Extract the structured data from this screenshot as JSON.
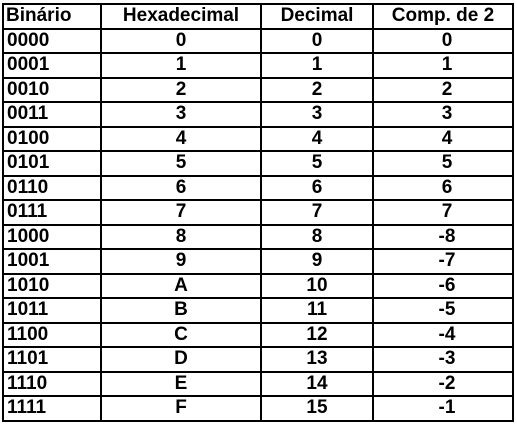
{
  "table": {
    "headers": {
      "binario": "Binário",
      "hexadecimal": "Hexadecimal",
      "decimal": "Decimal",
      "comp2": "Comp. de 2"
    },
    "rows": [
      {
        "binario": "0000",
        "hexadecimal": "0",
        "decimal": "0",
        "comp2": "0"
      },
      {
        "binario": "0001",
        "hexadecimal": "1",
        "decimal": "1",
        "comp2": "1"
      },
      {
        "binario": "0010",
        "hexadecimal": "2",
        "decimal": "2",
        "comp2": "2"
      },
      {
        "binario": "0011",
        "hexadecimal": "3",
        "decimal": "3",
        "comp2": "3"
      },
      {
        "binario": "0100",
        "hexadecimal": "4",
        "decimal": "4",
        "comp2": "4"
      },
      {
        "binario": "0101",
        "hexadecimal": "5",
        "decimal": "5",
        "comp2": "5"
      },
      {
        "binario": "0110",
        "hexadecimal": "6",
        "decimal": "6",
        "comp2": "6"
      },
      {
        "binario": "0111",
        "hexadecimal": "7",
        "decimal": "7",
        "comp2": "7"
      },
      {
        "binario": "1000",
        "hexadecimal": "8",
        "decimal": "8",
        "comp2": "-8"
      },
      {
        "binario": "1001",
        "hexadecimal": "9",
        "decimal": "9",
        "comp2": "-7"
      },
      {
        "binario": "1010",
        "hexadecimal": "A",
        "decimal": "10",
        "comp2": "-6"
      },
      {
        "binario": "1011",
        "hexadecimal": "B",
        "decimal": "11",
        "comp2": "-5"
      },
      {
        "binario": "1100",
        "hexadecimal": "C",
        "decimal": "12",
        "comp2": "-4"
      },
      {
        "binario": "1101",
        "hexadecimal": "D",
        "decimal": "13",
        "comp2": "-3"
      },
      {
        "binario": "1110",
        "hexadecimal": "E",
        "decimal": "14",
        "comp2": "-2"
      },
      {
        "binario": "1111",
        "hexadecimal": "F",
        "decimal": "15",
        "comp2": "-1"
      }
    ]
  }
}
